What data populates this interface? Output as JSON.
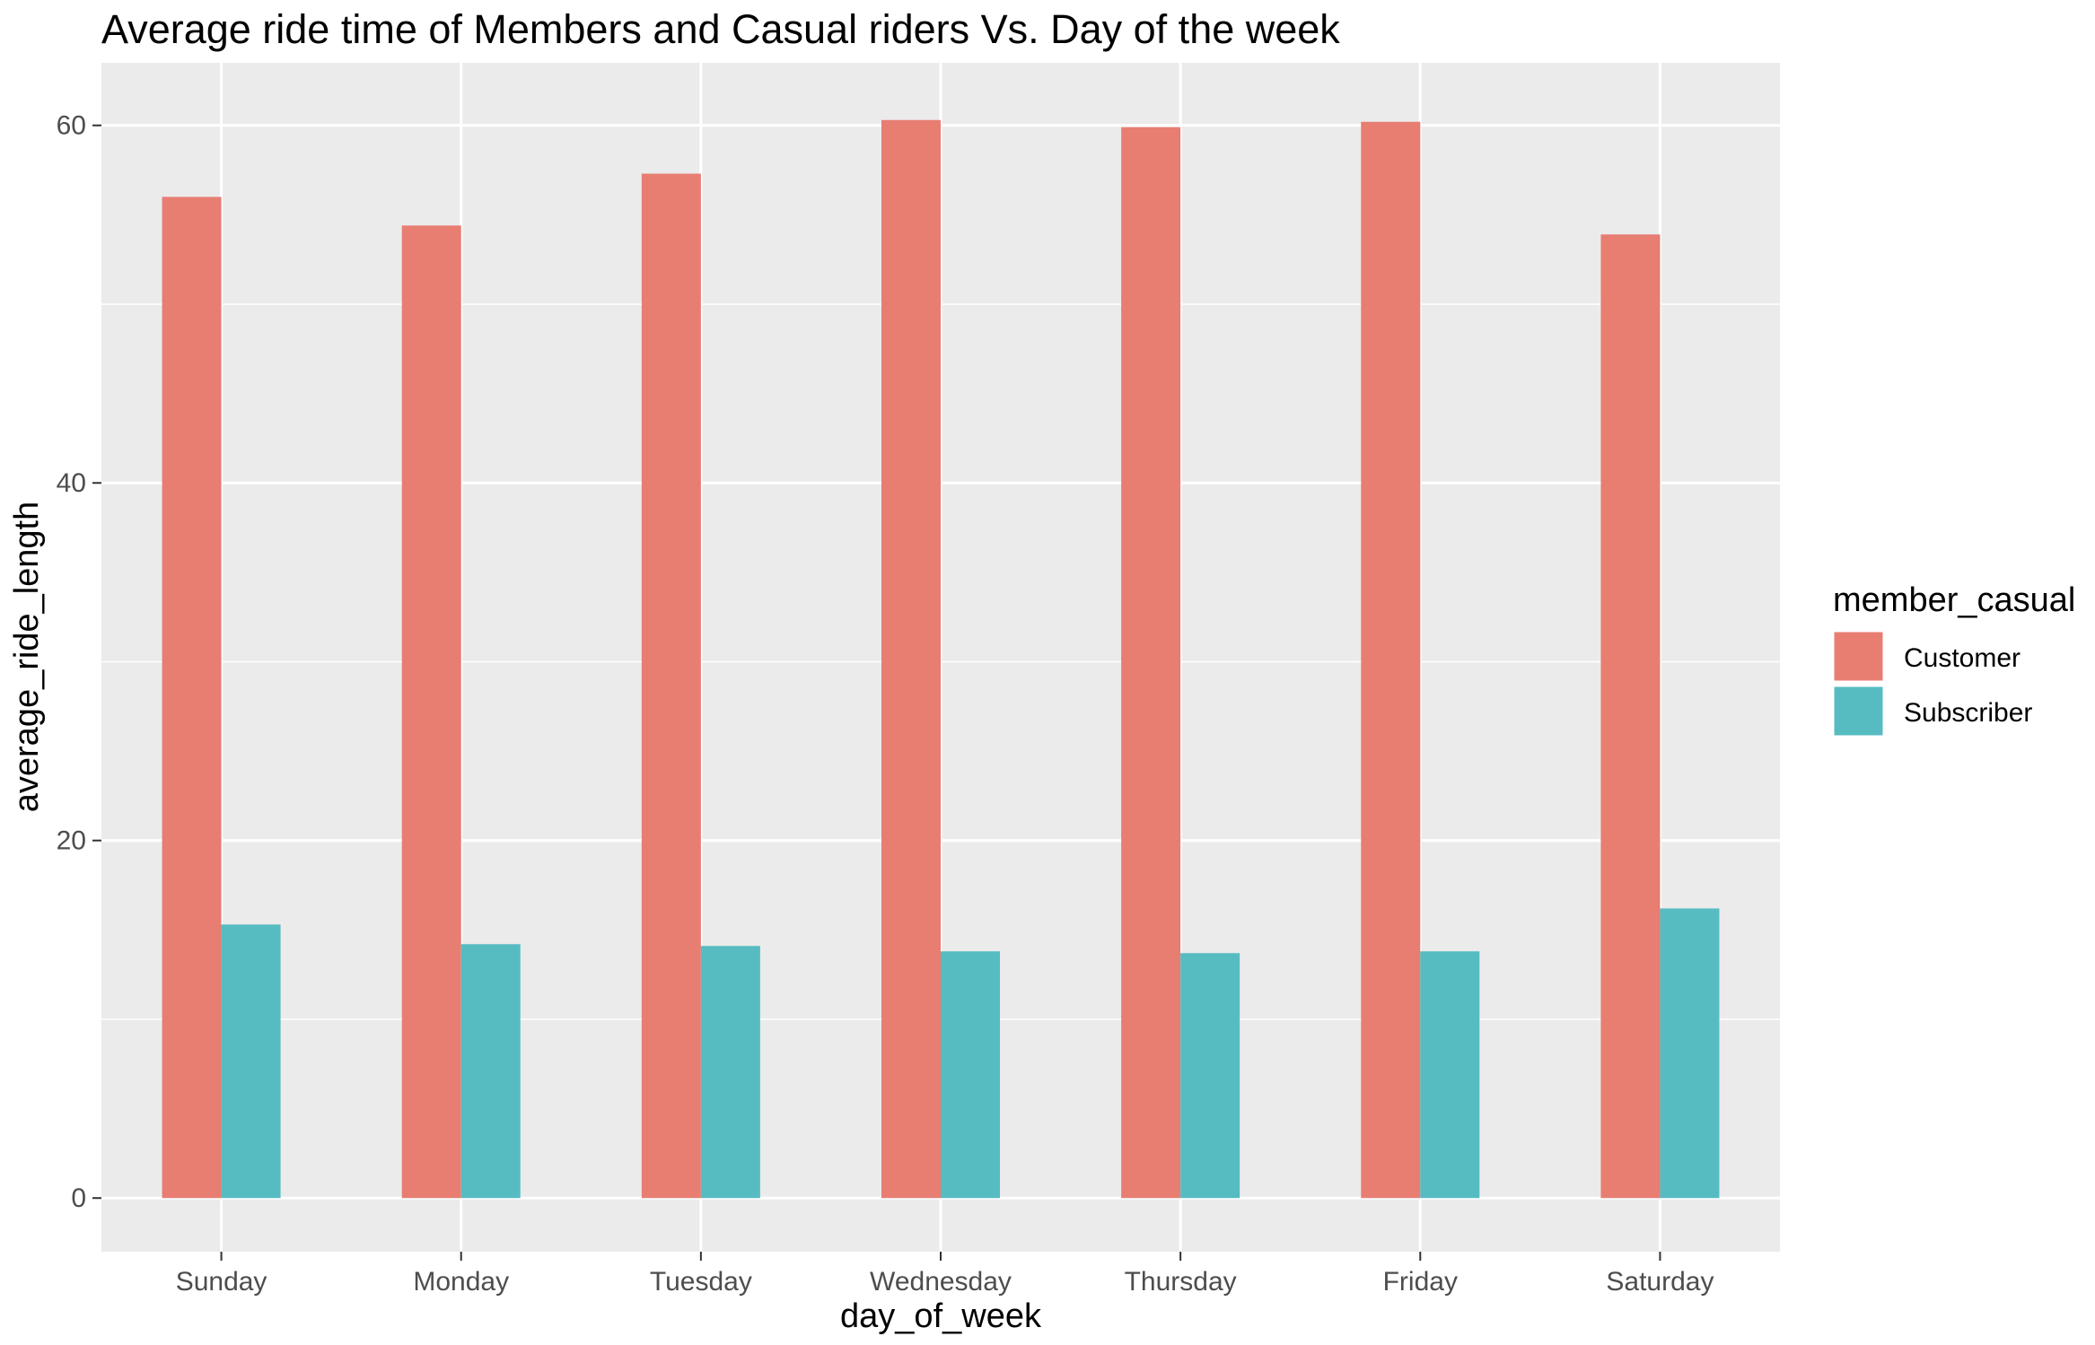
{
  "chart_data": {
    "type": "bar",
    "title": "Average ride time of Members and Casual riders Vs. Day of the week",
    "xlabel": "day_of_week",
    "ylabel": "average_ride_length",
    "categories": [
      "Sunday",
      "Monday",
      "Tuesday",
      "Wednesday",
      "Thursday",
      "Friday",
      "Saturday"
    ],
    "series": [
      {
        "name": "Customer",
        "color": "#E87D72",
        "values": [
          56.0,
          54.4,
          57.3,
          60.3,
          59.9,
          60.2,
          53.9
        ]
      },
      {
        "name": "Subscriber",
        "color": "#56BCC2",
        "values": [
          15.3,
          14.2,
          14.1,
          13.8,
          13.7,
          13.8,
          16.2
        ]
      }
    ],
    "ylim": [
      -3,
      63.5
    ],
    "y_ticks": [
      0,
      20,
      40,
      60
    ],
    "y_tick_labels": [
      "0",
      "20",
      "40",
      "60"
    ],
    "grid": true,
    "legend": {
      "title": "member_casual",
      "position": "right"
    },
    "panel_background": "#EBEBEB",
    "grid_color": "#FFFFFF"
  }
}
